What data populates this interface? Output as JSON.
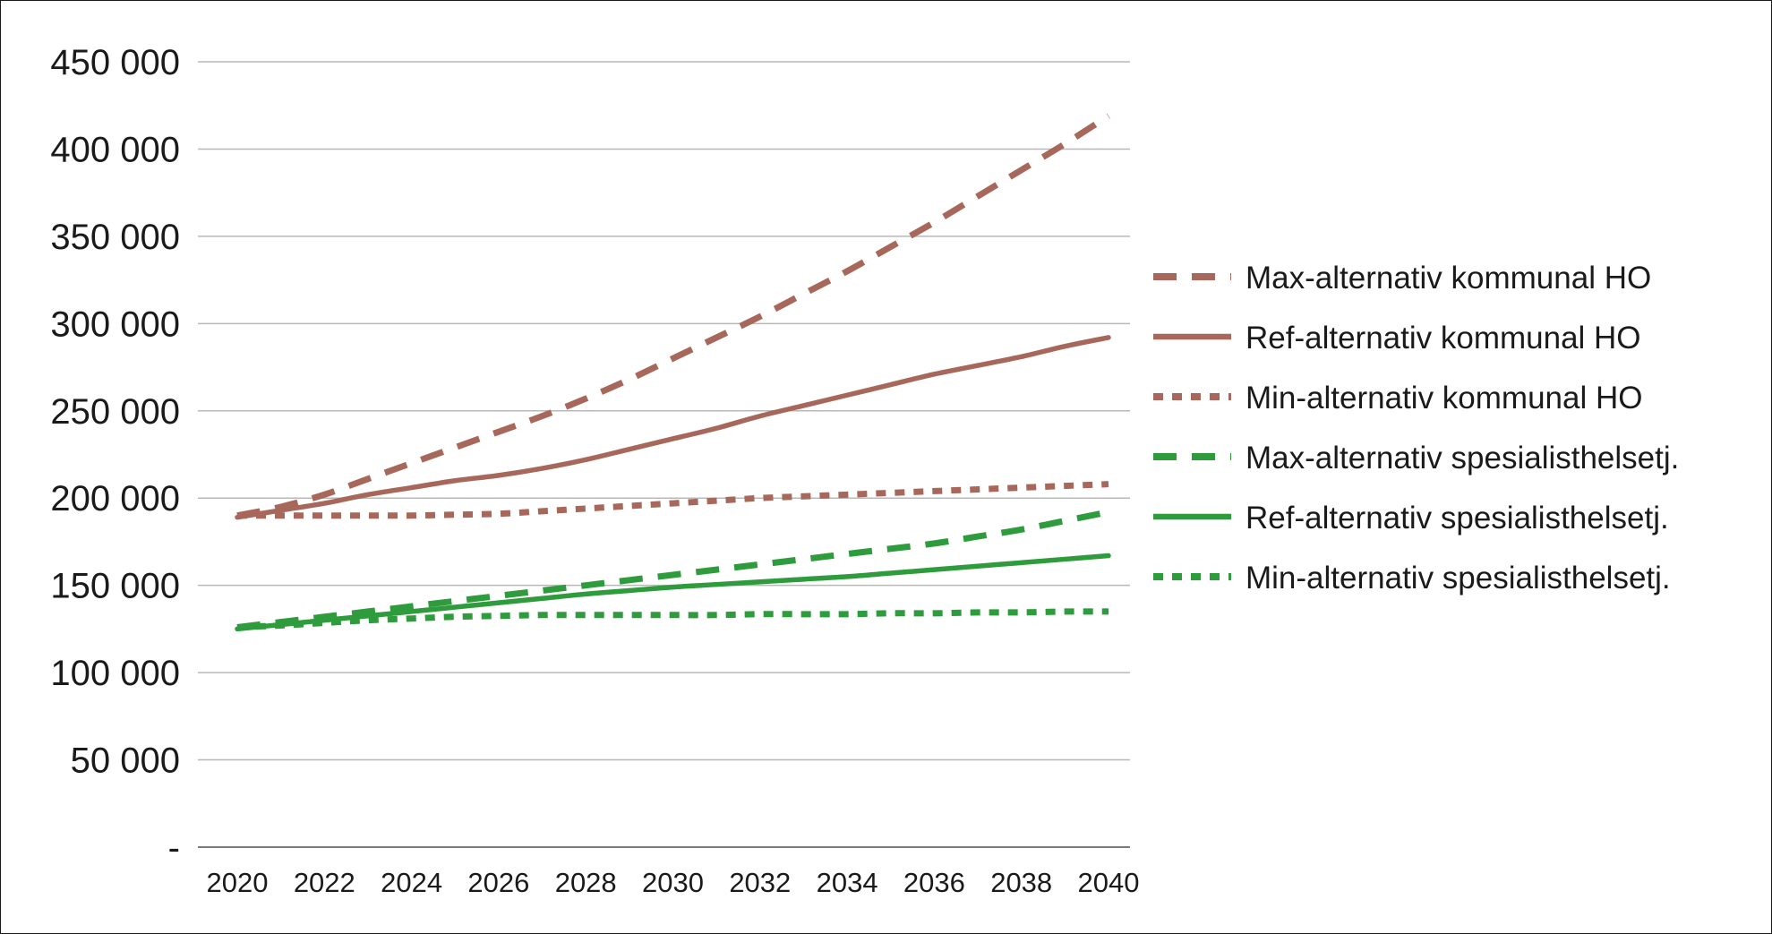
{
  "chart_data": {
    "type": "line",
    "title": "",
    "xlabel": "",
    "ylabel": "",
    "x": [
      2020,
      2021,
      2022,
      2023,
      2024,
      2025,
      2026,
      2027,
      2028,
      2029,
      2030,
      2031,
      2032,
      2033,
      2034,
      2035,
      2036,
      2037,
      2038,
      2039,
      2040
    ],
    "xticks": [
      "2020",
      "2022",
      "2024",
      "2026",
      "2028",
      "2030",
      "2032",
      "2034",
      "2036",
      "2038",
      "2040"
    ],
    "yticks": [
      "-",
      "50 000",
      "100 000",
      "150 000",
      "200 000",
      "250 000",
      "300 000",
      "350 000",
      "400 000",
      "450 000"
    ],
    "ylim": [
      0,
      450000
    ],
    "grid": true,
    "legend_position": "right",
    "series": [
      {
        "name": "Max-alternativ kommunal HO",
        "color": "#a7685b",
        "style": "dashed",
        "values": [
          190000,
          195000,
          202000,
          211000,
          220000,
          229000,
          238000,
          247000,
          257000,
          268000,
          280000,
          292000,
          304000,
          317000,
          330000,
          344000,
          358000,
          373000,
          388000,
          403000,
          419000
        ]
      },
      {
        "name": "Ref-alternativ kommunal HO",
        "color": "#a7685b",
        "style": "solid",
        "values": [
          189000,
          193000,
          197000,
          202000,
          206000,
          210000,
          213000,
          217000,
          222000,
          228000,
          234000,
          240000,
          247000,
          253000,
          259000,
          265000,
          271000,
          276000,
          281000,
          287000,
          292000
        ]
      },
      {
        "name": "Min-alternativ kommunal HO",
        "color": "#a7685b",
        "style": "dotted",
        "values": [
          190000,
          190000,
          190000,
          190000,
          190000,
          190500,
          191000,
          192500,
          194000,
          195500,
          197000,
          198500,
          200000,
          201000,
          202000,
          203000,
          204000,
          205000,
          206000,
          207000,
          208000
        ]
      },
      {
        "name": "Max-alternativ spesialisthelsetj.",
        "color": "#2e9b3c",
        "style": "dashed",
        "values": [
          126000,
          129000,
          132000,
          135000,
          138000,
          141000,
          144000,
          147000,
          150000,
          153000,
          156000,
          159000,
          162000,
          165000,
          168000,
          171000,
          174000,
          178000,
          182000,
          187000,
          192000
        ]
      },
      {
        "name": "Ref-alternativ spesialisthelsetj.",
        "color": "#2e9b3c",
        "style": "solid",
        "values": [
          125000,
          127500,
          130000,
          132500,
          135000,
          137500,
          140000,
          142500,
          145000,
          147000,
          149000,
          150500,
          152000,
          153500,
          155000,
          157000,
          159000,
          161000,
          163000,
          165000,
          167000
        ]
      },
      {
        "name": "Min-alternativ spesialisthelsetj.",
        "color": "#2e9b3c",
        "style": "dotted",
        "values": [
          126000,
          127000,
          128500,
          130000,
          131000,
          132000,
          132500,
          133000,
          133000,
          133000,
          133000,
          133000,
          133500,
          133500,
          133500,
          134000,
          134000,
          134500,
          134500,
          135000,
          135000
        ]
      }
    ]
  }
}
